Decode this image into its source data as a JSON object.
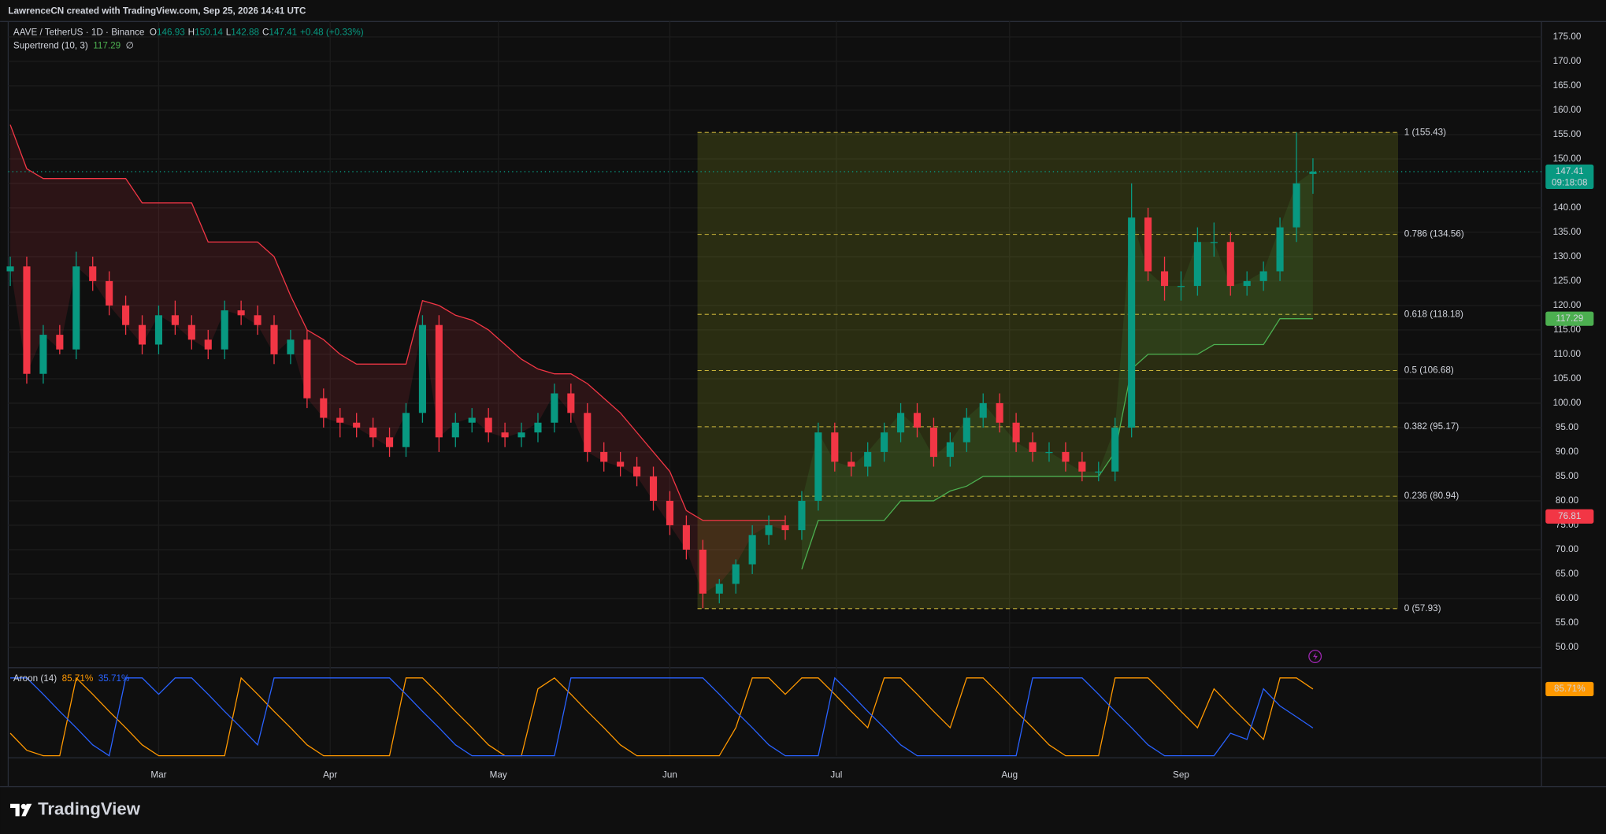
{
  "header": {
    "credit": "LawrenceCN created with TradingView.com, Sep 25, 2026 14:41 UTC",
    "brand": "TradingView"
  },
  "chart_data": {
    "type": "candlestick",
    "symbol": "AAVE / TetherUS · 1D · Binance",
    "ohlc_labels": [
      "O",
      "H",
      "L",
      "C"
    ],
    "last": {
      "open": 146.93,
      "high": 150.14,
      "low": 142.88,
      "close": 147.41,
      "change_label": "+0.48 (+0.33%)",
      "countdown": "09:18:08"
    },
    "up_color": "#089981",
    "down_color": "#f23645",
    "open": [
      127,
      128,
      106,
      114,
      111,
      128,
      125,
      120,
      116,
      112,
      118,
      116,
      113,
      111,
      119,
      118,
      116,
      110,
      113,
      101,
      97,
      96,
      95,
      93,
      91,
      98,
      116,
      93,
      96,
      97,
      94,
      93,
      94,
      96,
      102,
      98,
      90,
      88,
      87,
      85,
      80,
      75,
      70,
      61,
      63,
      67,
      73,
      75,
      74,
      80,
      94,
      88,
      87,
      90,
      94,
      98,
      95,
      89,
      92,
      97,
      100,
      96,
      92,
      90,
      90,
      88,
      86,
      86,
      95,
      138,
      127,
      124,
      124,
      133,
      133,
      124,
      125,
      127,
      136,
      146.93
    ],
    "high": [
      130,
      130,
      116,
      116,
      131,
      130,
      127,
      122,
      118,
      120,
      121,
      118,
      115,
      121,
      121,
      120,
      118,
      115,
      115,
      103,
      99,
      98,
      97,
      95,
      100,
      118,
      118,
      98,
      99,
      99,
      96,
      96,
      98,
      104,
      104,
      100,
      92,
      90,
      89,
      87,
      82,
      77,
      72,
      64,
      68,
      75,
      77,
      77,
      82,
      96,
      96,
      90,
      92,
      96,
      100,
      100,
      97,
      94,
      99,
      102,
      102,
      98,
      94,
      92,
      92,
      90,
      88,
      97,
      145,
      140,
      130,
      127,
      136,
      137,
      135,
      127,
      129,
      138,
      155.43,
      150.14
    ],
    "low": [
      124,
      104,
      104,
      110,
      109,
      123,
      118,
      114,
      110,
      110,
      114,
      111,
      109,
      109,
      116,
      114,
      108,
      108,
      99,
      95,
      93,
      93,
      91,
      89,
      89,
      96,
      90,
      91,
      94,
      92,
      91,
      91,
      92,
      94,
      96,
      88,
      86,
      85,
      83,
      78,
      73,
      68,
      58,
      59,
      61,
      65,
      71,
      72,
      72,
      78,
      86,
      85,
      85,
      88,
      92,
      93,
      87,
      87,
      90,
      95,
      94,
      90,
      88,
      88,
      86,
      84,
      84,
      84,
      93,
      125,
      121,
      121,
      122,
      130,
      122,
      122,
      123,
      125,
      133,
      142.88
    ],
    "close": [
      128,
      106,
      114,
      111,
      128,
      125,
      120,
      116,
      112,
      118,
      116,
      113,
      111,
      119,
      118,
      116,
      110,
      113,
      101,
      97,
      96,
      95,
      93,
      91,
      98,
      116,
      93,
      96,
      97,
      94,
      93,
      94,
      96,
      102,
      98,
      90,
      88,
      87,
      85,
      80,
      75,
      70,
      61,
      63,
      67,
      73,
      75,
      74,
      80,
      94,
      88,
      87,
      90,
      94,
      98,
      95,
      89,
      92,
      97,
      100,
      96,
      92,
      90,
      90,
      88,
      86,
      86,
      95,
      138,
      127,
      124,
      124,
      133,
      133,
      124,
      125,
      127,
      136,
      145,
      147.41
    ],
    "xticks": [
      {
        "value": 9.0,
        "label": "Mar"
      },
      {
        "value": 19.4,
        "label": "Apr"
      },
      {
        "value": 29.6,
        "label": "May"
      },
      {
        "value": 40.0,
        "label": "Jun"
      },
      {
        "value": 50.1,
        "label": "Jul"
      },
      {
        "value": 60.6,
        "label": "Aug"
      },
      {
        "value": 71.0,
        "label": "Sep"
      }
    ],
    "ylim": [
      46.25,
      178.15
    ],
    "yticks": [
      {
        "value": 50,
        "label": "50.00"
      },
      {
        "value": 55,
        "label": "55.00"
      },
      {
        "value": 60,
        "label": "60.00"
      },
      {
        "value": 65,
        "label": "65.00"
      },
      {
        "value": 70,
        "label": "70.00"
      },
      {
        "value": 75,
        "label": "75.00"
      },
      {
        "value": 80,
        "label": "80.00"
      },
      {
        "value": 85,
        "label": "85.00"
      },
      {
        "value": 90,
        "label": "90.00"
      },
      {
        "value": 95,
        "label": "95.00"
      },
      {
        "value": 100,
        "label": "100.00"
      },
      {
        "value": 105,
        "label": "105.00"
      },
      {
        "value": 110,
        "label": "110.00"
      },
      {
        "value": 115,
        "label": "115.00"
      },
      {
        "value": 120,
        "label": "120.00"
      },
      {
        "value": 125,
        "label": "125.00"
      },
      {
        "value": 130,
        "label": "130.00"
      },
      {
        "value": 135,
        "label": "135.00"
      },
      {
        "value": 140,
        "label": "140.00"
      },
      {
        "value": 145,
        "label": "145.00"
      },
      {
        "value": 150,
        "label": "150.00"
      },
      {
        "value": 155,
        "label": "155.00"
      },
      {
        "value": 160,
        "label": "160.00"
      },
      {
        "value": 165,
        "label": "165.00"
      },
      {
        "value": 170,
        "label": "170.00"
      },
      {
        "value": 175,
        "label": "175.00"
      }
    ],
    "grid": true,
    "price_tags": [
      {
        "value": 76.81,
        "color": "#f23645"
      }
    ],
    "supertrend": {
      "label": "Supertrend (10, 3)",
      "value": 117.29,
      "symbol": "∅",
      "down": {
        "color": "#f23645",
        "values": [
          157,
          148,
          146,
          146,
          146,
          146,
          146,
          146,
          141,
          141,
          141,
          141,
          133,
          133,
          133,
          133,
          130,
          122,
          115,
          113,
          110,
          108,
          108,
          108,
          108,
          121,
          120,
          118,
          117,
          115,
          112,
          109,
          107,
          106,
          106,
          104,
          101,
          98,
          94,
          90,
          86,
          78,
          76,
          76,
          76,
          76,
          76,
          76,
          null,
          null,
          null,
          null,
          null,
          null,
          null,
          null,
          null,
          null,
          null,
          null,
          null,
          null,
          null,
          null,
          null,
          null,
          null,
          null,
          null,
          null,
          null,
          null,
          null,
          null,
          null,
          null,
          null,
          null,
          null,
          null
        ]
      },
      "up": {
        "color": "#4caf50",
        "values": [
          null,
          null,
          null,
          null,
          null,
          null,
          null,
          null,
          null,
          null,
          null,
          null,
          null,
          null,
          null,
          null,
          null,
          null,
          null,
          null,
          null,
          null,
          null,
          null,
          null,
          null,
          null,
          null,
          null,
          null,
          null,
          null,
          null,
          null,
          null,
          null,
          null,
          null,
          null,
          null,
          null,
          null,
          null,
          null,
          null,
          null,
          null,
          null,
          66,
          76,
          76,
          76,
          76,
          76,
          80,
          80,
          80,
          82,
          83,
          85,
          85,
          85,
          85,
          85,
          85,
          85,
          85,
          90,
          107,
          110,
          110,
          110,
          110,
          112,
          112,
          112,
          112,
          117.29,
          117.29,
          117.29
        ]
      }
    },
    "fib": {
      "color": "#c9b43a",
      "levels": [
        {
          "value": 155.43,
          "label": "1 (155.43)"
        },
        {
          "value": 134.56,
          "label": "0.786 (134.56)"
        },
        {
          "value": 118.18,
          "label": "0.618 (118.18)"
        },
        {
          "value": 106.68,
          "label": "0.5 (106.68)"
        },
        {
          "value": 95.17,
          "label": "0.382 (95.17)"
        },
        {
          "value": 80.94,
          "label": "0.236 (80.94)"
        },
        {
          "value": 57.93,
          "label": "0 (57.93)"
        }
      ]
    },
    "aroon": {
      "label": "Aroon (14)",
      "ylim": [
        0,
        100
      ],
      "series": [
        {
          "color": "#ff9800",
          "last_label": "85.71%",
          "values": [
            29,
            7,
            0,
            0,
            100,
            79,
            57,
            36,
            14,
            0,
            0,
            0,
            0,
            0,
            100,
            79,
            57,
            36,
            14,
            0,
            0,
            0,
            0,
            0,
            100,
            100,
            79,
            57,
            36,
            14,
            0,
            0,
            86,
            100,
            79,
            57,
            36,
            14,
            0,
            0,
            0,
            0,
            0,
            0,
            36,
            100,
            100,
            79,
            100,
            100,
            79,
            57,
            36,
            100,
            100,
            79,
            57,
            36,
            100,
            100,
            79,
            57,
            36,
            14,
            0,
            0,
            0,
            100,
            100,
            100,
            79,
            57,
            36,
            86,
            64,
            43,
            21,
            100,
            100,
            85.71
          ]
        },
        {
          "color": "#2962ff",
          "last_label": "35.71%",
          "values": [
            100,
            100,
            79,
            57,
            36,
            14,
            0,
            100,
            100,
            79,
            100,
            100,
            79,
            57,
            36,
            14,
            100,
            100,
            100,
            100,
            100,
            100,
            100,
            100,
            79,
            57,
            36,
            14,
            0,
            0,
            0,
            0,
            0,
            0,
            100,
            100,
            100,
            100,
            100,
            100,
            100,
            100,
            100,
            79,
            57,
            36,
            14,
            0,
            0,
            0,
            100,
            79,
            57,
            36,
            14,
            0,
            0,
            0,
            0,
            0,
            0,
            0,
            100,
            100,
            100,
            100,
            79,
            57,
            36,
            14,
            0,
            0,
            0,
            0,
            29,
            21,
            86,
            64,
            50,
            35.71
          ]
        }
      ]
    }
  }
}
